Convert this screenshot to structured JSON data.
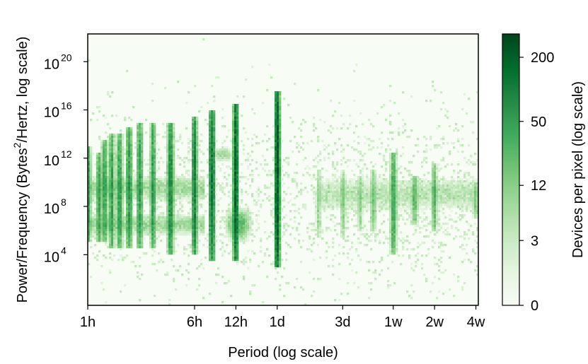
{
  "chart_data": {
    "type": "heatmap",
    "xlabel": "Period (log scale)",
    "ylabel": "Power/Frequency (Bytes²/Hertz, log scale)",
    "ylabel_parts": {
      "before": "Power/Frequency (Bytes",
      "sup": "2",
      "after": "/Hertz, log scale)"
    },
    "x_scale": "log",
    "y_scale": "log",
    "x_ticks": [
      {
        "label": "1h",
        "hours": 1
      },
      {
        "label": "6h",
        "hours": 6
      },
      {
        "label": "12h",
        "hours": 12
      },
      {
        "label": "1d",
        "hours": 24
      },
      {
        "label": "3d",
        "hours": 72
      },
      {
        "label": "1w",
        "hours": 168
      },
      {
        "label": "2w",
        "hours": 336
      },
      {
        "label": "4w",
        "hours": 672
      }
    ],
    "xlim_hours": [
      1,
      700
    ],
    "y_ticks": [
      {
        "base": "10",
        "exp": "20",
        "log10": 20
      },
      {
        "base": "10",
        "exp": "16",
        "log10": 16
      },
      {
        "base": "10",
        "exp": "12",
        "log10": 12
      },
      {
        "base": "10",
        "exp": "8",
        "log10": 8
      },
      {
        "base": "10",
        "exp": "4",
        "log10": 4
      }
    ],
    "ylim_log10": [
      -0.2,
      22.3
    ],
    "colorbar": {
      "label": "Devices per pixel (log scale)",
      "ticks": [
        {
          "label": "200",
          "value": 200
        },
        {
          "label": "50",
          "value": 50
        },
        {
          "label": "12",
          "value": 12
        },
        {
          "label": "3",
          "value": 3
        },
        {
          "label": "0",
          "value": 0
        }
      ],
      "min": 0,
      "max": 330,
      "colormap": "Greens",
      "color_low": "#f7fcf5",
      "color_high": "#00441b"
    },
    "features": [
      {
        "kind": "streak",
        "period_hours": 1.0,
        "log10_min": 5,
        "log10_max": 13,
        "intensity": 60
      },
      {
        "kind": "streak",
        "period_hours": 1.2,
        "log10_min": 5,
        "log10_max": 12.5,
        "intensity": 60
      },
      {
        "kind": "streak",
        "period_hours": 1.33,
        "log10_min": 5,
        "log10_max": 13.5,
        "intensity": 50
      },
      {
        "kind": "streak",
        "period_hours": 1.5,
        "log10_min": 4.5,
        "log10_max": 14,
        "intensity": 70
      },
      {
        "kind": "streak",
        "period_hours": 1.71,
        "log10_min": 4.5,
        "log10_max": 14,
        "intensity": 60
      },
      {
        "kind": "streak",
        "period_hours": 2.0,
        "log10_min": 4.5,
        "log10_max": 14.5,
        "intensity": 80
      },
      {
        "kind": "streak",
        "period_hours": 2.4,
        "log10_min": 4.5,
        "log10_max": 15,
        "intensity": 70
      },
      {
        "kind": "streak",
        "period_hours": 3.0,
        "log10_min": 4.5,
        "log10_max": 15,
        "intensity": 80
      },
      {
        "kind": "streak",
        "period_hours": 4.0,
        "log10_min": 4,
        "log10_max": 15,
        "intensity": 90
      },
      {
        "kind": "streak",
        "period_hours": 6.0,
        "log10_min": 4,
        "log10_max": 15.5,
        "intensity": 140
      },
      {
        "kind": "streak",
        "period_hours": 8.0,
        "log10_min": 3.5,
        "log10_max": 16,
        "intensity": 170
      },
      {
        "kind": "streak",
        "period_hours": 12.0,
        "log10_min": 3.5,
        "log10_max": 16.5,
        "intensity": 250
      },
      {
        "kind": "streak",
        "period_hours": 24.0,
        "log10_min": 3,
        "log10_max": 17.5,
        "intensity": 330
      },
      {
        "kind": "streak",
        "period_hours": 48.0,
        "log10_min": 5.5,
        "log10_max": 11,
        "intensity": 12
      },
      {
        "kind": "streak",
        "period_hours": 72.0,
        "log10_min": 5.5,
        "log10_max": 11,
        "intensity": 14
      },
      {
        "kind": "streak",
        "period_hours": 96.0,
        "log10_min": 6,
        "log10_max": 10.5,
        "intensity": 14
      },
      {
        "kind": "streak",
        "period_hours": 120.0,
        "log10_min": 6,
        "log10_max": 11,
        "intensity": 18
      },
      {
        "kind": "streak",
        "period_hours": 168.0,
        "log10_min": 4,
        "log10_max": 12.5,
        "intensity": 45
      },
      {
        "kind": "streak",
        "period_hours": 240.0,
        "log10_min": 6.5,
        "log10_max": 10.5,
        "intensity": 25
      },
      {
        "kind": "streak",
        "period_hours": 336.0,
        "log10_min": 6,
        "log10_max": 11.5,
        "intensity": 35
      },
      {
        "kind": "streak",
        "period_hours": 672.0,
        "log10_min": 7,
        "log10_max": 10,
        "intensity": 18
      },
      {
        "kind": "band",
        "period_min_hours": 1,
        "period_max_hours": 7,
        "log10_center": 9.5,
        "log10_halfwidth": 0.7,
        "intensity": 12
      },
      {
        "kind": "band",
        "period_min_hours": 1,
        "period_max_hours": 7,
        "log10_center": 6.5,
        "log10_halfwidth": 0.6,
        "intensity": 12
      },
      {
        "kind": "band",
        "period_min_hours": 48,
        "period_max_hours": 700,
        "log10_center": 9,
        "log10_halfwidth": 1.0,
        "intensity": 6
      },
      {
        "kind": "blob",
        "period_hours": 12.5,
        "log10_center": 6.5,
        "log10_halfwidth": 0.9,
        "intensity": 40
      },
      {
        "kind": "blob",
        "period_hours": 9.5,
        "log10_center": 12.3,
        "log10_halfwidth": 0.4,
        "intensity": 12
      }
    ]
  }
}
